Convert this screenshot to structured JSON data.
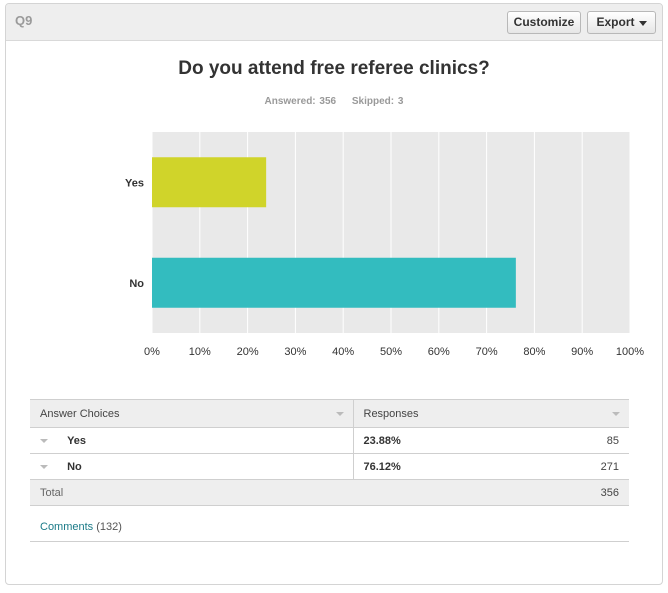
{
  "header": {
    "question_label": "Q9",
    "customize_label": "Customize",
    "export_label": "Export"
  },
  "question": {
    "title": "Do you attend free referee clinics?",
    "answered": "Answered: 356",
    "skipped": "Skipped: 3"
  },
  "chart_data": {
    "type": "bar",
    "orientation": "horizontal",
    "categories": [
      "Yes",
      "No"
    ],
    "values": [
      23.88,
      76.12
    ],
    "colors": [
      "#d0d42a",
      "#33bcbf"
    ],
    "xlim": [
      0,
      100
    ],
    "x_ticks": [
      "0%",
      "10%",
      "20%",
      "30%",
      "40%",
      "50%",
      "60%",
      "70%",
      "80%",
      "90%",
      "100%"
    ],
    "grid": true,
    "background": "#e9e9e9"
  },
  "table": {
    "headers": [
      "Answer Choices",
      "Responses"
    ],
    "rows": [
      {
        "choice": "Yes",
        "percent": "23.88%",
        "count": "85"
      },
      {
        "choice": "No",
        "percent": "76.12%",
        "count": "271"
      }
    ],
    "total_label": "Total",
    "total_count": "356"
  },
  "comments": {
    "label": "Comments",
    "count": "(132)"
  },
  "colors": {
    "link": "#1a7a87",
    "header_bg": "#eeeeee"
  }
}
